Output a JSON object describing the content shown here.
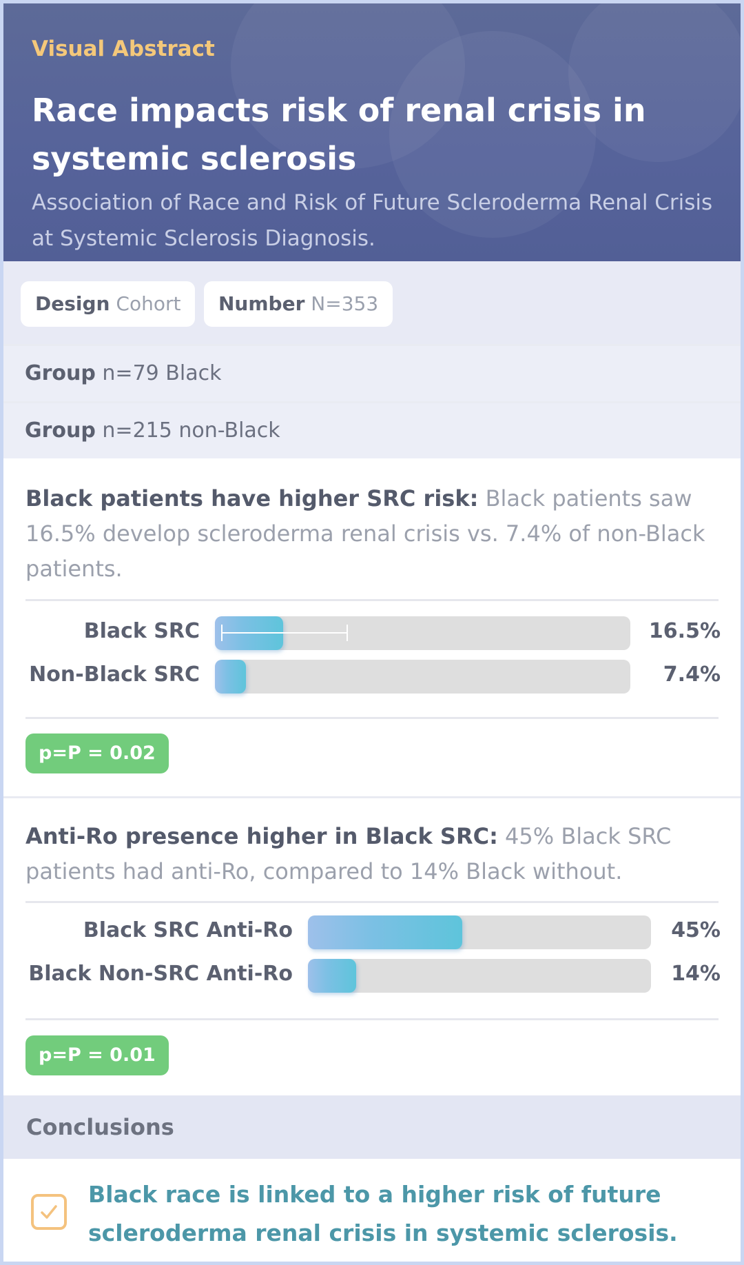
{
  "header": {
    "kicker": "Visual Abstract",
    "title": "Race impacts risk of renal crisis in systemic sclerosis",
    "subtitle": "Association of Race and Risk of Future Scleroderma Renal Crisis at Systemic Sclerosis Diagnosis."
  },
  "meta": {
    "design_label": "Design",
    "design_value": "Cohort",
    "number_label": "Number",
    "number_value": "N=353"
  },
  "groups": [
    {
      "label": "Group",
      "value": "n=79 Black"
    },
    {
      "label": "Group",
      "value": "n=215 non-Black"
    }
  ],
  "findings": [
    {
      "heading": "Black patients have higher SRC risk:",
      "description": "Black patients saw 16.5% develop scleroderma renal crisis vs. 7.4% of non-Black patients.",
      "p_value": "p=P = 0.02"
    },
    {
      "heading": "Anti-Ro presence higher in Black SRC:",
      "description": "45% Black SRC patients had anti-Ro, compared to 14% Black without.",
      "p_value": "p=P = 0.01"
    }
  ],
  "chart_data": [
    {
      "type": "bar",
      "orientation": "horizontal",
      "categories": [
        "Black SRC",
        "Non-Black SRC"
      ],
      "values": [
        16.5,
        7.4
      ],
      "value_labels": [
        "16.5%",
        "7.4%"
      ],
      "unit": "%",
      "xlim": [
        0,
        100
      ],
      "error_bar": {
        "category": "Black SRC",
        "low": 1.5,
        "high": 32.0
      }
    },
    {
      "type": "bar",
      "orientation": "horizontal",
      "categories": [
        "Black SRC Anti-Ro",
        "Black Non-SRC Anti-Ro"
      ],
      "values": [
        45,
        14
      ],
      "value_labels": [
        "45%",
        "14%"
      ],
      "unit": "%",
      "xlim": [
        0,
        100
      ]
    }
  ],
  "conclusions": {
    "heading": "Conclusions",
    "text": "Black race is linked to a higher risk of future scleroderma renal crisis in systemic sclerosis."
  },
  "colors": {
    "header_bg": "#5a6798",
    "kicker": "#f4c87a",
    "bar_fill": "#6cc2df",
    "bar_track": "#dedede",
    "p_badge": "#72cc7c",
    "conclusion_text": "#4c97a8",
    "check_icon": "#f4c27e"
  },
  "icons": {
    "conclusion": "checkbox-checked-icon"
  }
}
